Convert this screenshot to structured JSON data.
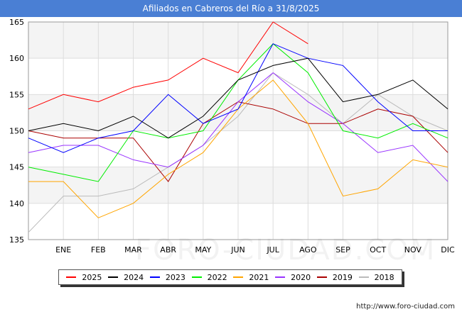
{
  "title": "Afiliados en Cabreros del Río a 31/8/2025",
  "source": "http://www.foro-ciudad.com",
  "watermark": "FORO-CIUDAD.COM",
  "chart_data": {
    "type": "line",
    "categories": [
      "",
      "ENE",
      "FEB",
      "MAR",
      "ABR",
      "MAY",
      "JUN",
      "JUL",
      "AGO",
      "SEP",
      "OCT",
      "NOV",
      "DIC"
    ],
    "ylim": [
      135,
      165
    ],
    "yticks": [
      135,
      140,
      145,
      150,
      155,
      160,
      165
    ],
    "grid": true,
    "legend_position": "bottom",
    "series": [
      {
        "name": "2025",
        "color": "#ff0000",
        "values": [
          153,
          155,
          154,
          156,
          157,
          160,
          158,
          165,
          162,
          null,
          null,
          null,
          null
        ]
      },
      {
        "name": "2024",
        "color": "#000000",
        "values": [
          150,
          151,
          150,
          152,
          149,
          152,
          157,
          159,
          160,
          154,
          155,
          157,
          153
        ]
      },
      {
        "name": "2023",
        "color": "#0000ff",
        "values": [
          149,
          147,
          149,
          150,
          155,
          151,
          153,
          162,
          160,
          159,
          154,
          150,
          150
        ]
      },
      {
        "name": "2022",
        "color": "#00ee00",
        "values": [
          145,
          144,
          143,
          150,
          149,
          150,
          157,
          162,
          158,
          150,
          149,
          151,
          149
        ]
      },
      {
        "name": "2021",
        "color": "#ffa500",
        "values": [
          143,
          143,
          138,
          140,
          144,
          147,
          153,
          157,
          151,
          141,
          142,
          146,
          145
        ]
      },
      {
        "name": "2020",
        "color": "#9933ff",
        "values": [
          147,
          148,
          148,
          146,
          145,
          148,
          154,
          158,
          154,
          151,
          147,
          148,
          143
        ]
      },
      {
        "name": "2019",
        "color": "#aa0000",
        "values": [
          150,
          149,
          149,
          149,
          143,
          151,
          154,
          153,
          151,
          151,
          153,
          152,
          147
        ]
      },
      {
        "name": "2018",
        "color": "#bbbbbb",
        "values": [
          136,
          141,
          141,
          142,
          145,
          148,
          152,
          158,
          155,
          151,
          155,
          152,
          150
        ]
      }
    ]
  }
}
